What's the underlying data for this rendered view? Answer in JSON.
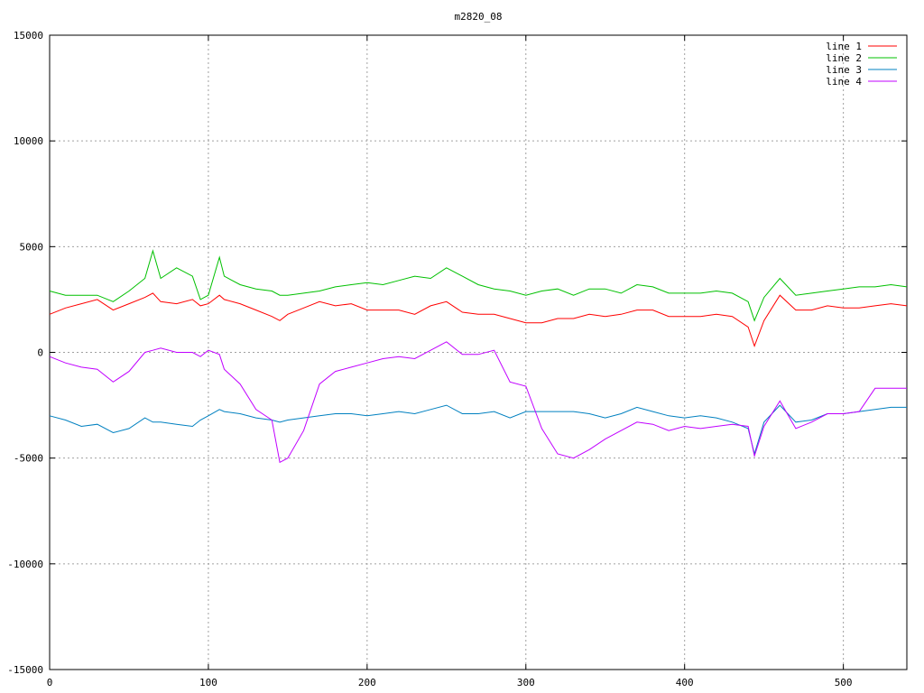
{
  "chart_data": {
    "type": "line",
    "title": "m2820_08",
    "xlabel": "",
    "ylabel": "",
    "xlim": [
      0,
      540
    ],
    "ylim": [
      -15000,
      15000
    ],
    "x_ticks": [
      0,
      100,
      200,
      300,
      400,
      500
    ],
    "y_ticks": [
      -15000,
      -10000,
      -5000,
      0,
      5000,
      10000,
      15000
    ],
    "grid": true,
    "legend_position": "top-right",
    "x": [
      0,
      10,
      20,
      30,
      40,
      50,
      60,
      65,
      70,
      80,
      90,
      95,
      100,
      107,
      110,
      120,
      130,
      140,
      145,
      150,
      160,
      170,
      180,
      190,
      200,
      210,
      220,
      230,
      240,
      250,
      260,
      270,
      280,
      290,
      300,
      310,
      320,
      330,
      340,
      350,
      360,
      370,
      380,
      390,
      400,
      410,
      420,
      430,
      440,
      444,
      450,
      460,
      470,
      480,
      490,
      500,
      510,
      520,
      530,
      540
    ],
    "series": [
      {
        "name": "line 1",
        "color": "#ff0000",
        "values": [
          1800,
          2100,
          2300,
          2500,
          2000,
          2300,
          2600,
          2800,
          2400,
          2300,
          2500,
          2200,
          2300,
          2700,
          2500,
          2300,
          2000,
          1700,
          1500,
          1800,
          2100,
          2400,
          2200,
          2300,
          2000,
          2000,
          2000,
          1800,
          2200,
          2400,
          1900,
          1800,
          1800,
          1600,
          1400,
          1400,
          1600,
          1600,
          1800,
          1700,
          1800,
          2000,
          2000,
          1700,
          1700,
          1700,
          1800,
          1700,
          1200,
          300,
          1500,
          2700,
          2000,
          2000,
          2200,
          2100,
          2100,
          2200,
          2300,
          2200
        ]
      },
      {
        "name": "line 2",
        "color": "#00c000",
        "values": [
          2900,
          2700,
          2700,
          2700,
          2400,
          2900,
          3500,
          4800,
          3500,
          4000,
          3600,
          2500,
          2700,
          4500,
          3600,
          3200,
          3000,
          2900,
          2700,
          2700,
          2800,
          2900,
          3100,
          3200,
          3300,
          3200,
          3400,
          3600,
          3500,
          4000,
          3600,
          3200,
          3000,
          2900,
          2700,
          2900,
          3000,
          2700,
          3000,
          3000,
          2800,
          3200,
          3100,
          2800,
          2800,
          2800,
          2900,
          2800,
          2400,
          1500,
          2600,
          3500,
          2700,
          2800,
          2900,
          3000,
          3100,
          3100,
          3200,
          3100
        ]
      },
      {
        "name": "line 3",
        "color": "#0080c0",
        "values": [
          -3000,
          -3200,
          -3500,
          -3400,
          -3800,
          -3600,
          -3100,
          -3300,
          -3300,
          -3400,
          -3500,
          -3200,
          -3000,
          -2700,
          -2800,
          -2900,
          -3100,
          -3200,
          -3300,
          -3200,
          -3100,
          -3000,
          -2900,
          -2900,
          -3000,
          -2900,
          -2800,
          -2900,
          -2700,
          -2500,
          -2900,
          -2900,
          -2800,
          -3100,
          -2800,
          -2800,
          -2800,
          -2800,
          -2900,
          -3100,
          -2900,
          -2600,
          -2800,
          -3000,
          -3100,
          -3000,
          -3100,
          -3300,
          -3600,
          -4800,
          -3300,
          -2500,
          -3300,
          -3200,
          -2900,
          -2900,
          -2800,
          -2700,
          -2600,
          -2600
        ]
      },
      {
        "name": "line 4",
        "color": "#c000ff",
        "values": [
          -200,
          -500,
          -700,
          -800,
          -1400,
          -900,
          0,
          100,
          200,
          0,
          0,
          -200,
          100,
          -100,
          -800,
          -1500,
          -2700,
          -3200,
          -5200,
          -5000,
          -3700,
          -1500,
          -900,
          -700,
          -500,
          -300,
          -200,
          -300,
          100,
          500,
          -100,
          -100,
          100,
          -1400,
          -1600,
          -3600,
          -4800,
          -5000,
          -4600,
          -4100,
          -3700,
          -3300,
          -3400,
          -3700,
          -3500,
          -3600,
          -3500,
          -3400,
          -3500,
          -4900,
          -3500,
          -2300,
          -3600,
          -3300,
          -2900,
          -2900,
          -2800,
          -1700,
          -1700,
          -1700
        ]
      }
    ]
  }
}
